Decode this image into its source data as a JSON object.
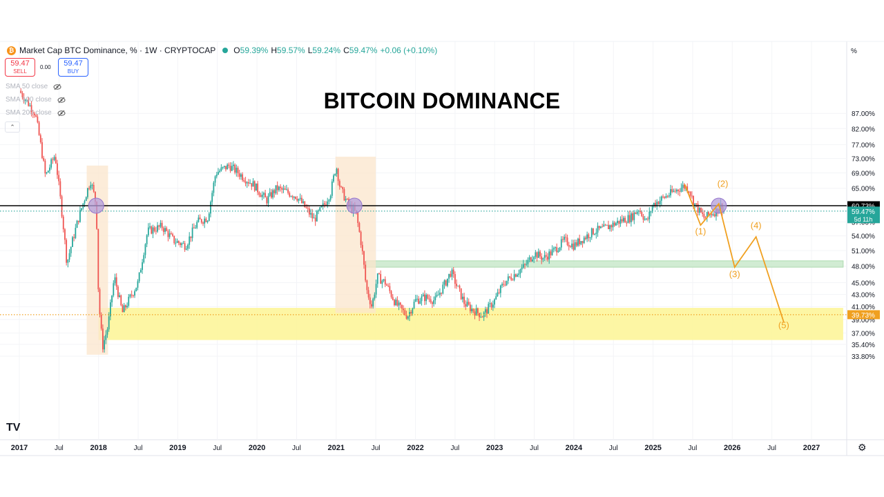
{
  "header": {
    "symbol_logo": "₿",
    "title": "Market Cap BTC Dominance, % · 1W · CRYPTOCAP",
    "open_label": "O",
    "open": "59.39%",
    "high_label": "H",
    "high": "59.57%",
    "low_label": "L",
    "low": "59.24%",
    "close_label": "C",
    "close": "59.47%",
    "change": "+0.06 (+0.10%)"
  },
  "trade": {
    "sell_price": "59.47",
    "sell_label": "SELL",
    "buy_price": "59.47",
    "buy_label": "BUY",
    "spread": "0.00"
  },
  "indicators": [
    "SMA 50 close",
    "SMA 100 close",
    "SMA 200 close"
  ],
  "headline": "BITCOIN DOMINANCE",
  "tv_logo": "TV",
  "colors": {
    "up": "#26a69a",
    "down": "#ef5350",
    "wave": "#f0a020",
    "support_zone": "#fdf59a",
    "resistance_zone": "#cdebcf",
    "highlight": "#fbe5cc"
  },
  "chart_data": {
    "type": "candlestick",
    "title": "BITCOIN DOMINANCE",
    "y_unit": "%",
    "y_scale": "log",
    "ylim": [
      33.5,
      90.0
    ],
    "y_ticks": [
      "87.00%",
      "82.00%",
      "77.00%",
      "73.00%",
      "69.00%",
      "65.00%",
      "57.00%",
      "54.00%",
      "51.00%",
      "48.00%",
      "45.00%",
      "43.00%",
      "41.00%",
      "39.00%",
      "37.00%",
      "35.40%",
      "33.80%"
    ],
    "x_ticks": [
      "2017",
      "Jul",
      "2018",
      "Jul",
      "2019",
      "Jul",
      "2020",
      "Jul",
      "2021",
      "Jul",
      "2022",
      "Jul",
      "2023",
      "Jul",
      "2024",
      "Jul",
      "2025",
      "Jul",
      "2026",
      "Jul",
      "2027"
    ],
    "xlim": [
      2017.0,
      2027.4
    ],
    "price_path": [
      [
        2017.0,
        95.0
      ],
      [
        2017.2,
        87.0
      ],
      [
        2017.33,
        68.0
      ],
      [
        2017.45,
        74.0
      ],
      [
        2017.52,
        62.0
      ],
      [
        2017.6,
        48.5
      ],
      [
        2017.75,
        58.0
      ],
      [
        2017.9,
        67.0
      ],
      [
        2017.97,
        61.0
      ],
      [
        2018.0,
        42.0
      ],
      [
        2018.05,
        35.0
      ],
      [
        2018.12,
        38.0
      ],
      [
        2018.2,
        46.0
      ],
      [
        2018.3,
        40.0
      ],
      [
        2018.38,
        42.0
      ],
      [
        2018.5,
        45.0
      ],
      [
        2018.62,
        55.0
      ],
      [
        2018.8,
        56.0
      ],
      [
        2018.95,
        53.0
      ],
      [
        2019.1,
        52.0
      ],
      [
        2019.25,
        57.0
      ],
      [
        2019.38,
        58.0
      ],
      [
        2019.48,
        69.0
      ],
      [
        2019.65,
        71.0
      ],
      [
        2019.85,
        67.5
      ],
      [
        2019.95,
        66.0
      ],
      [
        2020.12,
        62.0
      ],
      [
        2020.25,
        65.0
      ],
      [
        2020.38,
        64.0
      ],
      [
        2020.5,
        63.0
      ],
      [
        2020.62,
        60.0
      ],
      [
        2020.72,
        57.5
      ],
      [
        2020.85,
        61.0
      ],
      [
        2020.93,
        64.0
      ],
      [
        2021.0,
        71.0
      ],
      [
        2021.05,
        65.0
      ],
      [
        2021.15,
        61.0
      ],
      [
        2021.25,
        59.0
      ],
      [
        2021.32,
        52.0
      ],
      [
        2021.38,
        44.0
      ],
      [
        2021.45,
        41.0
      ],
      [
        2021.52,
        46.0
      ],
      [
        2021.62,
        45.0
      ],
      [
        2021.75,
        41.5
      ],
      [
        2021.9,
        39.5
      ],
      [
        2022.0,
        42.0
      ],
      [
        2022.12,
        42.5
      ],
      [
        2022.25,
        42.0
      ],
      [
        2022.38,
        45.0
      ],
      [
        2022.45,
        47.0
      ],
      [
        2022.52,
        44.5
      ],
      [
        2022.62,
        41.5
      ],
      [
        2022.72,
        40.5
      ],
      [
        2022.85,
        39.6
      ],
      [
        2023.0,
        42.0
      ],
      [
        2023.12,
        45.0
      ],
      [
        2023.25,
        46.5
      ],
      [
        2023.38,
        48.0
      ],
      [
        2023.5,
        50.5
      ],
      [
        2023.62,
        49.5
      ],
      [
        2023.75,
        51.0
      ],
      [
        2023.88,
        53.0
      ],
      [
        2024.0,
        52.0
      ],
      [
        2024.12,
        53.5
      ],
      [
        2024.25,
        55.0
      ],
      [
        2024.38,
        55.5
      ],
      [
        2024.5,
        56.5
      ],
      [
        2024.62,
        57.5
      ],
      [
        2024.72,
        58.0
      ],
      [
        2024.82,
        60.0
      ],
      [
        2024.92,
        57.0
      ],
      [
        2025.0,
        61.0
      ],
      [
        2025.12,
        62.5
      ],
      [
        2025.25,
        64.0
      ],
      [
        2025.38,
        65.5
      ],
      [
        2025.45,
        65.0
      ],
      [
        2025.5,
        62.0
      ],
      [
        2025.58,
        59.5
      ],
      [
        2025.65,
        57.8
      ],
      [
        2025.72,
        58.8
      ],
      [
        2025.8,
        59.5
      ],
      [
        2025.85,
        60.8
      ],
      [
        2025.9,
        59.47
      ]
    ],
    "horizontal_lines": [
      {
        "value": 60.73,
        "label": "60.73%",
        "style": "solid",
        "color": "#000000"
      },
      {
        "value": 59.47,
        "label": "59.47%",
        "sublabel": "5d 11h",
        "style": "dotted",
        "color": "#26a69a"
      },
      {
        "value": 39.73,
        "label": "39.73%",
        "style": "dotted",
        "color": "#f0a020"
      }
    ],
    "zones": [
      {
        "kind": "support",
        "x": [
          2018.0,
          2027.4
        ],
        "y": [
          36.0,
          40.8
        ]
      },
      {
        "kind": "resistance",
        "x": [
          2021.38,
          2027.4
        ],
        "y": [
          47.8,
          49.0
        ]
      },
      {
        "kind": "highlight",
        "x": [
          2017.85,
          2018.12
        ],
        "y": [
          34.0,
          71.0
        ]
      },
      {
        "kind": "highlight",
        "x": [
          2020.99,
          2021.5
        ],
        "y": [
          40.0,
          73.5
        ]
      }
    ],
    "circles": [
      {
        "x": 2017.97,
        "y": 60.73
      },
      {
        "x": 2021.23,
        "y": 60.73
      },
      {
        "x": 2025.83,
        "y": 60.73
      }
    ],
    "elliott_wave": {
      "points": [
        [
          2025.4,
          66.0
        ],
        [
          2025.6,
          56.3
        ],
        [
          2025.83,
          61.2
        ],
        [
          2026.03,
          47.8
        ],
        [
          2026.3,
          53.8
        ],
        [
          2026.65,
          38.6
        ]
      ],
      "labels": [
        {
          "text": "(1)",
          "x": 2025.6,
          "y": 54.3
        },
        {
          "text": "(2)",
          "x": 2025.88,
          "y": 65.4
        },
        {
          "text": "(3)",
          "x": 2026.03,
          "y": 46.0
        },
        {
          "text": "(4)",
          "x": 2026.3,
          "y": 55.6
        },
        {
          "text": "(5)",
          "x": 2026.65,
          "y": 37.7
        }
      ]
    }
  }
}
